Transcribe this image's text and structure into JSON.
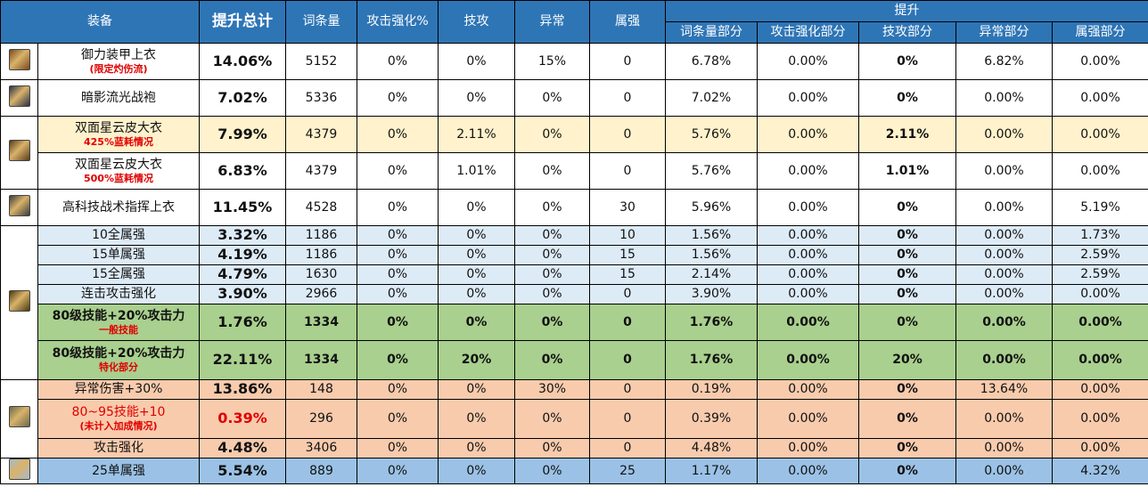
{
  "header": {
    "equipment": "装备",
    "total": "提升总计",
    "entries": "词条量",
    "atk_boost": "攻击强化%",
    "skill_atk": "技攻",
    "abnormal": "异常",
    "element": "属强",
    "improve": "提升",
    "entries_part": "词条量部分",
    "atk_boost_part": "攻击强化部分",
    "skill_atk_part": "技攻部分",
    "abnormal_part": "异常部分",
    "element_part": "属强部分"
  },
  "rows": [
    {
      "name": "御力装甲上衣",
      "note": "(限定灼伤流)",
      "total": "14.06%",
      "entries": "5152",
      "atk": "0%",
      "skill": "0%",
      "abn": "15%",
      "elem": "0",
      "p_entries": "6.78%",
      "p_atk": "0.00%",
      "p_skill": "0%",
      "p_abn": "6.82%",
      "p_elem": "0.00%"
    },
    {
      "name": "暗影流光战袍",
      "note": "",
      "total": "7.02%",
      "entries": "5336",
      "atk": "0%",
      "skill": "0%",
      "abn": "0%",
      "elem": "0",
      "p_entries": "7.02%",
      "p_atk": "0.00%",
      "p_skill": "0%",
      "p_abn": "0.00%",
      "p_elem": "0.00%"
    },
    {
      "name": "双面星云皮大衣",
      "note": "425%蓝耗情况",
      "total": "7.99%",
      "entries": "4379",
      "atk": "0%",
      "skill": "2.11%",
      "abn": "0%",
      "elem": "0",
      "p_entries": "5.76%",
      "p_atk": "0.00%",
      "p_skill": "2.11%",
      "p_abn": "0.00%",
      "p_elem": "0.00%"
    },
    {
      "name": "双面星云皮大衣",
      "note": "500%蓝耗情况",
      "total": "6.83%",
      "entries": "4379",
      "atk": "0%",
      "skill": "1.01%",
      "abn": "0%",
      "elem": "0",
      "p_entries": "5.76%",
      "p_atk": "0.00%",
      "p_skill": "1.01%",
      "p_abn": "0.00%",
      "p_elem": "0.00%"
    },
    {
      "name": "高科技战术指挥上衣",
      "note": "",
      "total": "11.45%",
      "entries": "4528",
      "atk": "0%",
      "skill": "0%",
      "abn": "0%",
      "elem": "30",
      "p_entries": "5.96%",
      "p_atk": "0.00%",
      "p_skill": "0%",
      "p_abn": "0.00%",
      "p_elem": "5.19%"
    },
    {
      "name": "10全属强",
      "note": "",
      "total": "3.32%",
      "entries": "1186",
      "atk": "0%",
      "skill": "0%",
      "abn": "0%",
      "elem": "10",
      "p_entries": "1.56%",
      "p_atk": "0.00%",
      "p_skill": "0%",
      "p_abn": "0.00%",
      "p_elem": "1.73%"
    },
    {
      "name": "15单属强",
      "note": "",
      "total": "4.19%",
      "entries": "1186",
      "atk": "0%",
      "skill": "0%",
      "abn": "0%",
      "elem": "15",
      "p_entries": "1.56%",
      "p_atk": "0.00%",
      "p_skill": "0%",
      "p_abn": "0.00%",
      "p_elem": "2.59%"
    },
    {
      "name": "15全属强",
      "note": "",
      "total": "4.79%",
      "entries": "1630",
      "atk": "0%",
      "skill": "0%",
      "abn": "0%",
      "elem": "15",
      "p_entries": "2.14%",
      "p_atk": "0.00%",
      "p_skill": "0%",
      "p_abn": "0.00%",
      "p_elem": "2.59%"
    },
    {
      "name": "连击攻击强化",
      "note": "",
      "total": "3.90%",
      "entries": "2966",
      "atk": "0%",
      "skill": "0%",
      "abn": "0%",
      "elem": "0",
      "p_entries": "3.90%",
      "p_atk": "0.00%",
      "p_skill": "0%",
      "p_abn": "0.00%",
      "p_elem": "0.00%"
    },
    {
      "name": "80级技能+20%攻击力",
      "note": "一般技能",
      "total": "1.76%",
      "entries": "1334",
      "atk": "0%",
      "skill": "0%",
      "abn": "0%",
      "elem": "0",
      "p_entries": "1.76%",
      "p_atk": "0.00%",
      "p_skill": "0%",
      "p_abn": "0.00%",
      "p_elem": "0.00%"
    },
    {
      "name": "80级技能+20%攻击力",
      "note": "特化部分",
      "total": "22.11%",
      "entries": "1334",
      "atk": "0%",
      "skill": "20%",
      "abn": "0%",
      "elem": "0",
      "p_entries": "1.76%",
      "p_atk": "0.00%",
      "p_skill": "20%",
      "p_abn": "0.00%",
      "p_elem": "0.00%"
    },
    {
      "name": "异常伤害+30%",
      "note": "",
      "total": "13.86%",
      "entries": "148",
      "atk": "0%",
      "skill": "0%",
      "abn": "30%",
      "elem": "0",
      "p_entries": "0.19%",
      "p_atk": "0.00%",
      "p_skill": "0%",
      "p_abn": "13.64%",
      "p_elem": "0.00%"
    },
    {
      "name": "80~95技能+10",
      "note": "(未计入加成情况)",
      "total": "0.39%",
      "entries": "296",
      "atk": "0%",
      "skill": "0%",
      "abn": "0%",
      "elem": "0",
      "p_entries": "0.39%",
      "p_atk": "0.00%",
      "p_skill": "0%",
      "p_abn": "0.00%",
      "p_elem": "0.00%"
    },
    {
      "name": "攻击强化",
      "note": "",
      "total": "4.48%",
      "entries": "3406",
      "atk": "0%",
      "skill": "0%",
      "abn": "0%",
      "elem": "0",
      "p_entries": "4.48%",
      "p_atk": "0.00%",
      "p_skill": "0%",
      "p_abn": "0.00%",
      "p_elem": "0.00%"
    },
    {
      "name": "25单属强",
      "note": "",
      "total": "5.54%",
      "entries": "889",
      "atk": "0%",
      "skill": "0%",
      "abn": "0%",
      "elem": "25",
      "p_entries": "1.17%",
      "p_atk": "0.00%",
      "p_skill": "0%",
      "p_abn": "0.00%",
      "p_elem": "4.32%"
    }
  ],
  "icons": [
    "armor-jacket-icon",
    "shadow-robe-icon",
    "nebula-coat-icon",
    "tactical-jacket-icon",
    "belt-icon",
    "pants-icon",
    "shoes-icon"
  ],
  "colors": {
    "header": "#2e75b6",
    "cream": "#fff2cc",
    "blue": "#ddebf7",
    "green": "#a9d08e",
    "orange": "#f4b084",
    "steel": "#9bc2e6",
    "red": "#e00000"
  }
}
